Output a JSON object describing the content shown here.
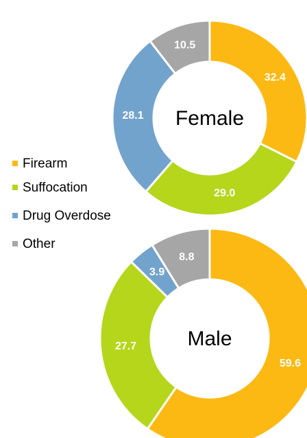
{
  "chart_data": [
    {
      "type": "donut",
      "title": "Female",
      "categories": [
        "Firearm",
        "Suffocation",
        "Drug Overdose",
        "Other"
      ],
      "values": [
        32.4,
        29.0,
        28.1,
        10.5
      ],
      "value_labels": [
        "32.4",
        "29.0",
        "28.1",
        "10.5"
      ],
      "colors": [
        "#fdb913",
        "#b5d61b",
        "#72a3cc",
        "#a6a6a6"
      ]
    },
    {
      "type": "donut",
      "title": "Male",
      "categories": [
        "Firearm",
        "Suffocation",
        "Drug Overdose",
        "Other"
      ],
      "values": [
        59.6,
        27.7,
        3.9,
        8.8
      ],
      "value_labels": [
        "59.6",
        "27.7",
        "3.9",
        "8.8"
      ],
      "colors": [
        "#fdb913",
        "#b5d61b",
        "#72a3cc",
        "#a6a6a6"
      ]
    }
  ]
}
